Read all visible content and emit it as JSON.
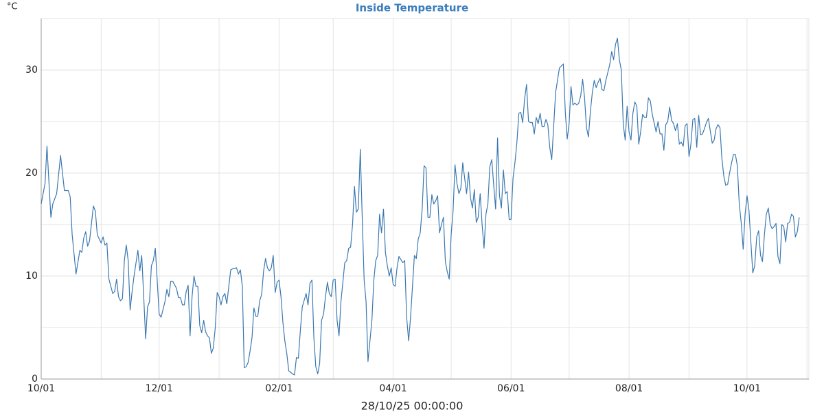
{
  "chart_data": {
    "type": "line",
    "title": "Inside Temperature",
    "y_label": "°C",
    "x_label": "28/10/25 00:00:00",
    "color": "#3a78b0",
    "grid": true,
    "xlim": [
      0,
      397
    ],
    "xticks": [
      {
        "value": 0,
        "label": "10/01"
      },
      {
        "value": 61,
        "label": "12/01"
      },
      {
        "value": 123,
        "label": "02/01"
      },
      {
        "value": 182,
        "label": "04/01"
      },
      {
        "value": 243,
        "label": "06/01"
      },
      {
        "value": 304,
        "label": "08/01"
      },
      {
        "value": 365,
        "label": "10/01"
      }
    ],
    "xgrid": [
      31,
      92,
      151,
      212,
      273,
      335,
      396
    ],
    "ylim": [
      0,
      35
    ],
    "yticks": [
      0,
      10,
      20,
      30
    ],
    "ygrid": [
      5,
      15,
      25
    ],
    "x": [
      0,
      2,
      3,
      5,
      6,
      8,
      10,
      11,
      12,
      14,
      15,
      16,
      18,
      20,
      21,
      22,
      23,
      24,
      25,
      27,
      28,
      29,
      31,
      32,
      33,
      34,
      35,
      37,
      38,
      39,
      40,
      41,
      42,
      43,
      44,
      45,
      46,
      47,
      48,
      50,
      51,
      52,
      53,
      54,
      55,
      56,
      57,
      58,
      59,
      60,
      61,
      62,
      64,
      65,
      66,
      67,
      68,
      70,
      71,
      72,
      73,
      74,
      75,
      76,
      77,
      78,
      79,
      80,
      81,
      82,
      83,
      84,
      85,
      86,
      87,
      88,
      89,
      90,
      91,
      92,
      93,
      94,
      95,
      96,
      97,
      98,
      99,
      101,
      102,
      103,
      104,
      105,
      106,
      107,
      108,
      109,
      110,
      111,
      112,
      113,
      114,
      115,
      116,
      117,
      118,
      119,
      120,
      121,
      122,
      123,
      124,
      125,
      126,
      127,
      128,
      130,
      131,
      132,
      133,
      134,
      135,
      137,
      138,
      139,
      140,
      141,
      142,
      143,
      144,
      145,
      146,
      147,
      148,
      149,
      150,
      151,
      152,
      153,
      154,
      155,
      156,
      157,
      158,
      159,
      160,
      161,
      162,
      163,
      164,
      165,
      166,
      167,
      168,
      169,
      171,
      172,
      173,
      174,
      175,
      176,
      177,
      178,
      179,
      180,
      181,
      182,
      183,
      184,
      185,
      186,
      187,
      188,
      189,
      190,
      191,
      192,
      193,
      194,
      195,
      196,
      197,
      198,
      199,
      200,
      201,
      202,
      203,
      204,
      205,
      206,
      207,
      208,
      209,
      210,
      211,
      212,
      213,
      214,
      215,
      216,
      217,
      218,
      220,
      221,
      222,
      223,
      224,
      225,
      226,
      227,
      228,
      229,
      230,
      231,
      232,
      233,
      234,
      235,
      236,
      237,
      238,
      239,
      240,
      241,
      242,
      243,
      244,
      245,
      246,
      247,
      248,
      249,
      250,
      251,
      252,
      253,
      254,
      255,
      256,
      257,
      258,
      259,
      260,
      261,
      262,
      263,
      264,
      265,
      266,
      267,
      268,
      270,
      271,
      272,
      273,
      274,
      275,
      276,
      277,
      278,
      279,
      280,
      281,
      282,
      283,
      284,
      285,
      286,
      287,
      288,
      289,
      290,
      291,
      292,
      294,
      295,
      296,
      297,
      298,
      299,
      300,
      301,
      302,
      303,
      304,
      305,
      306,
      307,
      308,
      309,
      310,
      311,
      312,
      313,
      314,
      315,
      316,
      318,
      319,
      320,
      321,
      322,
      323,
      324,
      325,
      326,
      327,
      328,
      329,
      330,
      331,
      332,
      333,
      334,
      335,
      336,
      337,
      338,
      339,
      340,
      341,
      342,
      343,
      344,
      345,
      347,
      348,
      349,
      350,
      351,
      352,
      353,
      354,
      355,
      356,
      357,
      358,
      359,
      360,
      361,
      362,
      363,
      364,
      365,
      366,
      367,
      368,
      369,
      370,
      371,
      372,
      373,
      374,
      375,
      376,
      377,
      378,
      379,
      380,
      381,
      382,
      383,
      384,
      385,
      386,
      387,
      388,
      389,
      390,
      391,
      392
    ],
    "values": [
      17,
      19,
      22.6,
      15.7,
      17,
      18,
      21.7,
      20,
      18.3,
      18.3,
      17.7,
      14,
      10.2,
      12.5,
      12.3,
      13.7,
      14.3,
      12.9,
      13.4,
      16.8,
      16.3,
      14,
      13.2,
      13.8,
      13,
      13.2,
      9.7,
      8.3,
      8.5,
      9.7,
      8,
      7.6,
      7.8,
      11.5,
      13,
      11.5,
      6.7,
      8.5,
      10,
      12.5,
      10.5,
      12,
      8,
      3.9,
      7,
      7.5,
      11,
      11.5,
      12.7,
      9.5,
      6.3,
      6,
      7.5,
      8.7,
      8,
      9.5,
      9.5,
      8.8,
      7.9,
      7.9,
      7.2,
      7.2,
      8.5,
      9.1,
      4.2,
      8,
      10,
      9,
      9,
      5.2,
      4.5,
      5.7,
      4.6,
      4.2,
      4,
      2.5,
      3,
      5,
      8.4,
      8,
      7.2,
      8,
      8.3,
      7.3,
      9,
      10.6,
      10.7,
      10.8,
      10.2,
      10.6,
      9,
      1.1,
      1.2,
      1.6,
      2.7,
      4,
      6.9,
      6.1,
      6.1,
      7.6,
      8.2,
      10.5,
      11.7,
      10.8,
      10.5,
      10.8,
      12,
      8.4,
      9.4,
      9.6,
      8,
      5.5,
      3.7,
      2.5,
      0.8,
      0.5,
      0.4,
      2.1,
      2,
      4.7,
      7,
      8.3,
      7.2,
      9.3,
      9.6,
      4,
      1.2,
      0.5,
      1.5,
      5.7,
      6.3,
      8,
      9.4,
      8.3,
      8,
      9.6,
      9.7,
      5.7,
      4.2,
      7.5,
      9.4,
      11.3,
      11.5,
      12.7,
      12.8,
      15,
      18.7,
      16.2,
      16.5,
      22.3,
      15.7,
      9.6,
      7.5,
      1.7,
      5.7,
      9.6,
      11.5,
      12,
      16,
      14.2,
      16.5,
      12.3,
      11,
      10,
      10.8,
      9.2,
      9,
      10.8,
      11.9,
      11.6,
      11.3,
      11.5,
      6,
      3.7,
      6,
      9,
      12,
      11.7,
      13.6,
      14.2,
      16.5,
      20.7,
      20.5,
      15.7,
      15.7,
      17.9,
      17,
      17.3,
      17.8,
      14.2,
      15,
      15.7,
      11.4,
      10.4,
      9.7,
      14,
      16.3,
      20.8,
      19,
      18,
      18.5,
      21,
      18,
      20.1,
      17.6,
      16.6,
      18.4,
      15.2,
      15.7,
      18,
      15,
      12.7,
      16,
      17,
      20.6,
      21.3,
      18.8,
      16.5,
      23.4,
      17.8,
      16.6,
      20.3,
      18,
      18.2,
      15.5,
      15.5,
      19.5,
      21,
      23,
      25.8,
      25.9,
      24.9,
      27.2,
      28.6,
      25,
      24.9,
      24.9,
      23.8,
      25.4,
      24.8,
      25.8,
      24.5,
      24.5,
      25.2,
      24.7,
      22.5,
      21.3,
      24.5,
      27.8,
      29,
      30.2,
      30.6,
      26,
      23.3,
      24.8,
      28.4,
      26.6,
      26.8,
      26.6,
      26.8,
      27.5,
      29.1,
      27.3,
      24.4,
      23.5,
      26,
      27.8,
      29,
      28.3,
      28.8,
      29.2,
      28.1,
      28,
      29,
      30.5,
      31.8,
      31,
      32.5,
      33.1,
      31,
      30,
      24.7,
      23.2,
      26.5,
      24,
      23.2,
      25.8,
      26.9,
      26.5,
      22.8,
      24,
      25.7,
      25.4,
      25.4,
      27.3,
      27,
      25.7,
      24,
      25,
      23.8,
      23.8,
      22.2,
      24.7,
      25,
      26.4,
      25.1,
      24.8,
      24.1,
      24.8,
      22.8,
      23,
      22.6,
      24.6,
      24.8,
      21.6,
      22.8,
      25.2,
      25.3,
      22.5,
      25.6,
      23.7,
      23.8,
      24.3,
      24.9,
      25.3,
      22.9,
      23.2,
      24.3,
      24.7,
      24.4,
      21.4,
      19.7,
      18.8,
      18.9,
      20,
      21,
      21.8,
      21.8,
      20.7,
      17,
      15.2,
      12.6,
      16,
      17.8,
      16.4,
      13.3,
      10.3,
      11,
      13.8,
      14.4,
      12,
      11.4,
      14,
      16,
      16.6,
      15,
      14.6,
      14.8,
      15.1,
      11.9,
      11.2,
      15,
      14.8,
      13.3,
      15.1,
      15.2,
      16,
      15.8,
      13.8,
      14.3,
      15.7
    ]
  }
}
